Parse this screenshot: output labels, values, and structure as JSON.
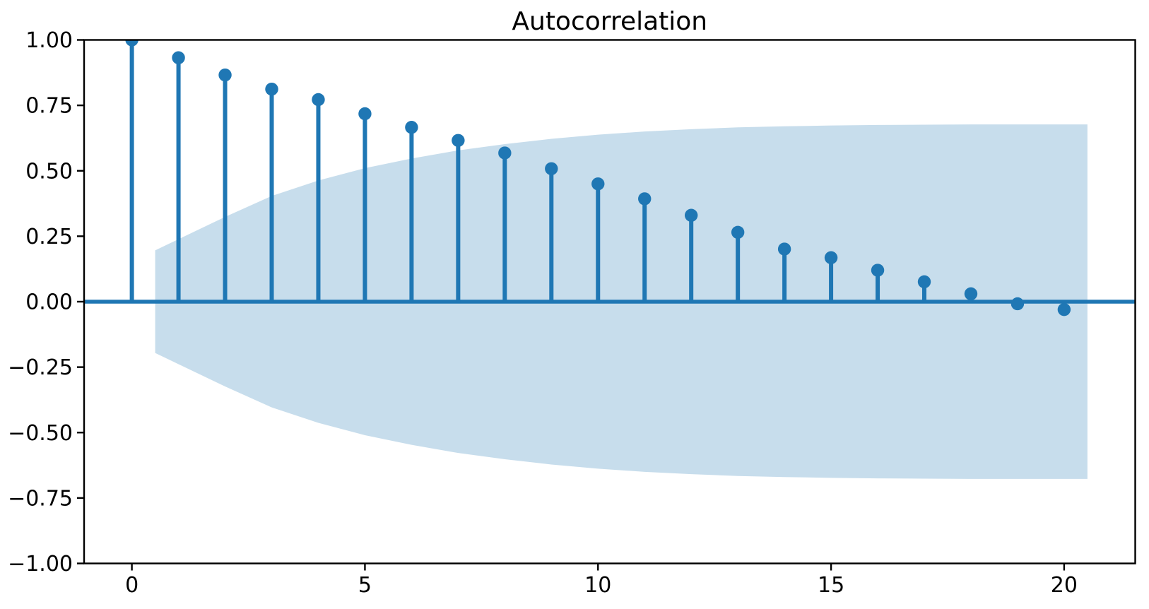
{
  "chart_data": {
    "type": "stem",
    "title": "Autocorrelation",
    "xlabel": "",
    "ylabel": "",
    "xlim": [
      -1.025,
      21.525
    ],
    "ylim": [
      -1.0,
      1.0
    ],
    "grid": false,
    "legend": "none",
    "lags": [
      0,
      1,
      2,
      3,
      4,
      5,
      6,
      7,
      8,
      9,
      10,
      11,
      12,
      13,
      14,
      15,
      16,
      17,
      18,
      19,
      20
    ],
    "acf": [
      1.0,
      0.932,
      0.866,
      0.812,
      0.772,
      0.718,
      0.666,
      0.616,
      0.568,
      0.508,
      0.45,
      0.393,
      0.33,
      0.265,
      0.201,
      0.168,
      0.12,
      0.076,
      0.03,
      -0.008,
      -0.03
    ],
    "conf_band": {
      "x": [
        0.5,
        2,
        3,
        4,
        5,
        6,
        7,
        8,
        9,
        10,
        11,
        12,
        13,
        14,
        15,
        16,
        17,
        18,
        19,
        20,
        20.5
      ],
      "upper": [
        0.196,
        0.324,
        0.404,
        0.463,
        0.51,
        0.547,
        0.578,
        0.602,
        0.622,
        0.638,
        0.65,
        0.659,
        0.666,
        0.67,
        0.673,
        0.675,
        0.676,
        0.677,
        0.677,
        0.677,
        0.677
      ],
      "lower": [
        -0.196,
        -0.324,
        -0.404,
        -0.463,
        -0.51,
        -0.547,
        -0.578,
        -0.602,
        -0.622,
        -0.638,
        -0.65,
        -0.659,
        -0.666,
        -0.67,
        -0.673,
        -0.675,
        -0.676,
        -0.677,
        -0.677,
        -0.677,
        -0.677
      ]
    },
    "xticks": [
      0,
      5,
      10,
      15,
      20
    ],
    "xtick_labels": [
      "0",
      "5",
      "10",
      "15",
      "20"
    ],
    "yticks": [
      1.0,
      0.75,
      0.5,
      0.25,
      0.0,
      -0.25,
      -0.5,
      -0.75,
      -1.0
    ],
    "ytick_labels": [
      "1.00",
      "0.75",
      "0.50",
      "0.25",
      "0.00",
      "−0.25",
      "−0.50",
      "−0.75",
      "−1.00"
    ],
    "colors": {
      "stem": "#1f77b4",
      "marker": "#1f77b4",
      "zero_line": "#1f77b4",
      "band_fill": "#1f77b4",
      "band_alpha": 0.25,
      "spine": "#000000",
      "text": "#000000",
      "background": "#ffffff"
    }
  }
}
